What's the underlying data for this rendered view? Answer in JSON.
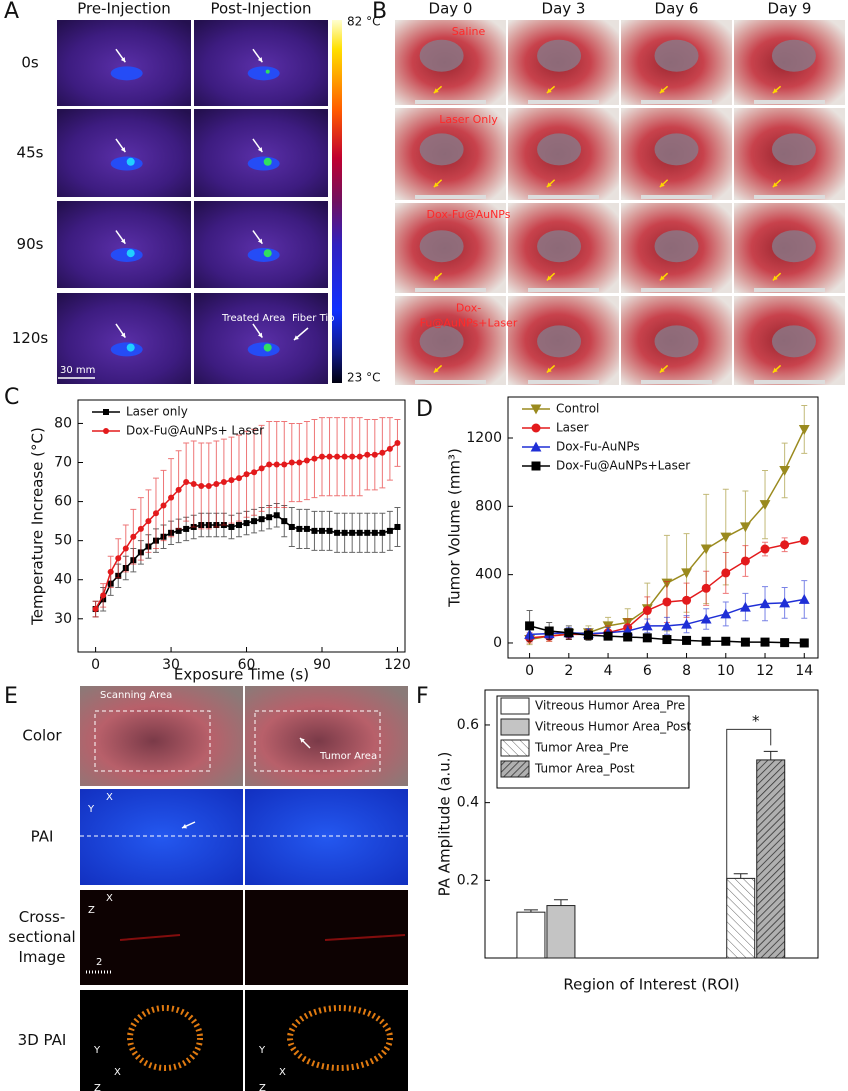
{
  "panel_a": {
    "letter": "A",
    "columns": [
      "Pre-Injection",
      "Post-Injection"
    ],
    "rows": [
      "0s",
      "45s",
      "90s",
      "120s"
    ],
    "colorbar_max": "82 °C",
    "colorbar_min": "23 °C",
    "scale_bar": "30 mm",
    "treated_area": "Treated Area",
    "fiber_tip": "Fiber Tip"
  },
  "panel_b": {
    "letter": "B",
    "columns": [
      "Day 0",
      "Day 3",
      "Day 6",
      "Day 9"
    ],
    "rows": [
      "Saline",
      "Laser Only",
      "Dox-Fu@AuNPs",
      [
        "Dox-",
        "Fu@AuNPs+Laser"
      ]
    ]
  },
  "panel_e": {
    "letter": "E",
    "rows": [
      "Color",
      "PAI",
      [
        "Cross-",
        "sectional",
        "Image"
      ],
      "3D PAI"
    ],
    "scanning_area": "Scanning Area",
    "tumor_area": "Tumor Area",
    "pai_axes": [
      "X",
      "Y"
    ],
    "cross_axes": [
      "X",
      "Z"
    ],
    "axes_3d": [
      "Y",
      "X",
      "Z"
    ],
    "scale_bar": "2"
  },
  "chart_data": [
    {
      "type": "line",
      "letter": "C",
      "x_label": "Exposure Time (s)",
      "y_label": "Temperature Increase (°C)",
      "xlim": [
        -7,
        123
      ],
      "ylim": [
        21.5,
        86
      ],
      "xticks": [
        0,
        30,
        60,
        90,
        120
      ],
      "yticks": [
        30,
        40,
        50,
        60,
        70,
        80
      ],
      "grid": false,
      "legend": "upper-left",
      "x": [
        0,
        3,
        6,
        9,
        12,
        15,
        18,
        21,
        24,
        27,
        30,
        33,
        36,
        39,
        42,
        45,
        48,
        51,
        54,
        57,
        60,
        63,
        66,
        69,
        72,
        75,
        78,
        81,
        84,
        87,
        90,
        93,
        96,
        99,
        102,
        105,
        108,
        111,
        114,
        117,
        120
      ],
      "series": [
        {
          "name": "Laser only",
          "color": "#000000",
          "marker": "square",
          "values": [
            32.5,
            35,
            39,
            41,
            43,
            45,
            47,
            48.5,
            50,
            51,
            52,
            52.5,
            53,
            53.5,
            54,
            54,
            54,
            54,
            53.5,
            54,
            54.5,
            55,
            55.5,
            56,
            56.5,
            55,
            53.5,
            53,
            53,
            52.5,
            52.5,
            52.5,
            52,
            52,
            52,
            52,
            52,
            52,
            52,
            52.5,
            53.5
          ],
          "errors": [
            2,
            3,
            3,
            3,
            3,
            3,
            3,
            3,
            3,
            3,
            3,
            3,
            3,
            3,
            3,
            3,
            3,
            3,
            3,
            3,
            3,
            3,
            3,
            3,
            3,
            4,
            5,
            5,
            5,
            5,
            5,
            5,
            5,
            5,
            5,
            5,
            5,
            5,
            5,
            5,
            5
          ]
        },
        {
          "name": "Dox-Fu@AuNPs+ Laser",
          "color": "#e31a1c",
          "marker": "circle",
          "values": [
            32.5,
            36,
            42,
            45.5,
            48,
            51,
            53,
            55,
            57,
            59,
            61,
            63,
            65,
            64.5,
            64,
            64,
            64.5,
            65,
            65.5,
            66,
            67,
            67.5,
            68.5,
            69.5,
            69.5,
            69.5,
            70,
            70,
            70.5,
            71,
            71.5,
            71.5,
            71.5,
            71.5,
            71.5,
            71.5,
            72,
            72,
            72.5,
            73.5,
            75
          ],
          "errors": [
            2,
            3,
            4,
            5,
            6,
            7,
            8,
            8,
            9,
            9,
            10,
            10,
            10,
            11,
            11,
            11,
            11,
            11,
            11,
            11,
            11,
            11,
            11,
            11,
            11,
            11,
            10,
            10,
            10,
            10,
            10,
            10,
            10,
            10,
            10,
            10,
            9,
            9,
            9,
            8,
            6
          ]
        }
      ]
    },
    {
      "type": "line",
      "letter": "D",
      "y_label": "Tumor Volume (mm³)",
      "xlim": [
        -1.1,
        14.7
      ],
      "ylim": [
        -88,
        1440
      ],
      "xticks": [
        0,
        2,
        4,
        6,
        8,
        10,
        12,
        14
      ],
      "yticks": [
        0,
        400,
        800,
        1200
      ],
      "grid": false,
      "legend": "upper-left",
      "x": [
        0,
        1,
        2,
        3,
        4,
        5,
        6,
        7,
        8,
        9,
        10,
        11,
        12,
        13,
        14
      ],
      "series": [
        {
          "name": "Control",
          "color": "#9a8a1e",
          "marker": "triangle-down",
          "values": [
            20,
            40,
            55,
            60,
            100,
            120,
            200,
            350,
            410,
            550,
            620,
            680,
            810,
            1010,
            1250
          ],
          "errors": [
            30,
            30,
            30,
            40,
            50,
            80,
            150,
            280,
            230,
            320,
            280,
            210,
            200,
            160,
            140
          ]
        },
        {
          "name": "Laser",
          "color": "#e31a1c",
          "marker": "circle",
          "values": [
            30,
            40,
            50,
            50,
            60,
            90,
            190,
            240,
            250,
            320,
            410,
            480,
            550,
            575,
            600
          ],
          "errors": [
            30,
            30,
            30,
            30,
            40,
            50,
            80,
            120,
            100,
            100,
            120,
            90,
            40,
            40,
            20
          ]
        },
        {
          "name": "Dox-Fu-AuNPs",
          "color": "#1f2fd6",
          "marker": "triangle-up",
          "values": [
            50,
            55,
            60,
            55,
            60,
            70,
            100,
            100,
            110,
            140,
            170,
            210,
            230,
            235,
            255
          ],
          "errors": [
            30,
            30,
            30,
            30,
            30,
            30,
            40,
            50,
            50,
            60,
            70,
            80,
            100,
            90,
            110
          ]
        },
        {
          "name": "Dox-Fu@AuNPs+Laser",
          "color": "#000000",
          "marker": "square",
          "values": [
            100,
            70,
            60,
            45,
            40,
            35,
            30,
            20,
            15,
            10,
            10,
            5,
            5,
            2,
            0
          ],
          "errors": [
            90,
            50,
            40,
            30,
            20,
            20,
            15,
            10,
            10,
            10,
            10,
            10,
            10,
            10,
            10
          ]
        }
      ]
    },
    {
      "type": "bar",
      "letter": "F",
      "x_label": "Region of Interest (ROI)",
      "y_label": "PA  Amplitude (a.u.)",
      "ylim": [
        0,
        0.69
      ],
      "yticks": [
        0.2,
        0.4,
        0.6
      ],
      "grid": false,
      "legend": "upper-left",
      "legend_frame": true,
      "annotation": "*",
      "categories": [
        null,
        null
      ],
      "series": [
        {
          "name": "Vitreous Humor Area_Pre",
          "color": "#ffffff",
          "values": [
            0.118,
            null
          ],
          "errors": [
            0.006,
            null
          ]
        },
        {
          "name": "Vitreous Humor Area_Post",
          "color": "#c4c4c4",
          "values": [
            0.135,
            null
          ],
          "errors": [
            0.015,
            null
          ]
        },
        {
          "name": "Tumor Area_Pre",
          "color": "#ffffff",
          "pattern": "hatch-light",
          "values": [
            null,
            0.205
          ],
          "errors": [
            null,
            0.012
          ]
        },
        {
          "name": "Tumor Area_Post",
          "color": "#b0b0b0",
          "pattern": "hatch-dark",
          "values": [
            null,
            0.51
          ],
          "errors": [
            null,
            0.022
          ]
        }
      ]
    }
  ]
}
